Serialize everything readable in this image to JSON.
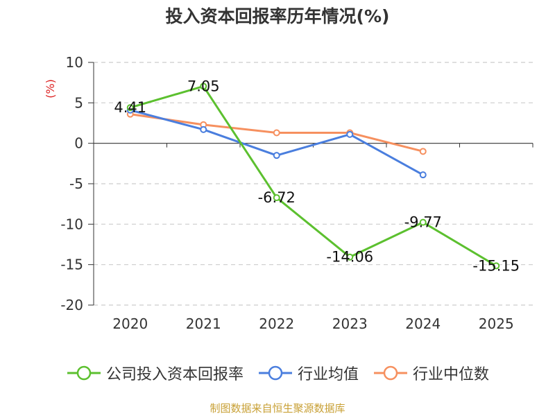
{
  "chart_data": {
    "type": "line",
    "title": "投入资本回报率历年情况(%)",
    "ylabel": "(%)",
    "categories": [
      "2020",
      "2021",
      "2022",
      "2023",
      "2024",
      "2025"
    ],
    "ylim": [
      -20,
      10
    ],
    "yticks": [
      10,
      5,
      0,
      -5,
      -10,
      -15,
      -20
    ],
    "grid": true,
    "legend_position": "bottom",
    "series": [
      {
        "name": "公司投入资本回报率",
        "color": "#5cc02f",
        "values": [
          4.41,
          7.05,
          -6.72,
          -14.06,
          -9.77,
          -15.15
        ],
        "labels": [
          "4.41",
          "7.05",
          "-6.72",
          "-14.06",
          "-9.77",
          "-15.15"
        ]
      },
      {
        "name": "行业均值",
        "color": "#4a7ede",
        "values": [
          4.1,
          1.7,
          -1.5,
          1.1,
          -3.9,
          null
        ]
      },
      {
        "name": "行业中位数",
        "color": "#f6905f",
        "values": [
          3.6,
          2.3,
          1.3,
          1.3,
          -1.0,
          null
        ]
      }
    ]
  },
  "source": "制图数据来自恒生聚源数据库"
}
